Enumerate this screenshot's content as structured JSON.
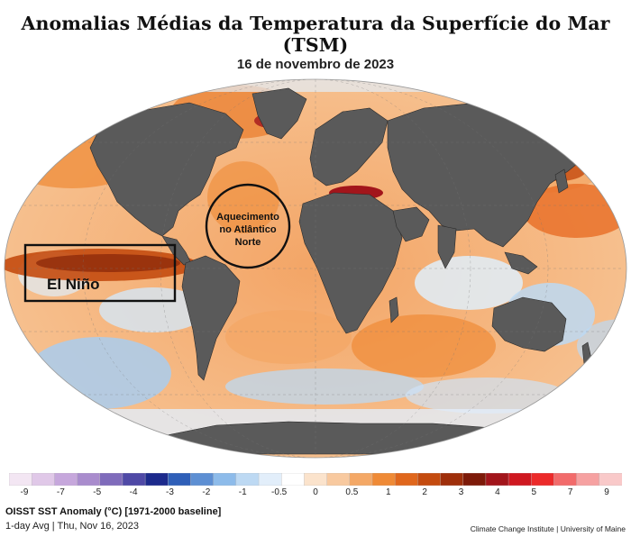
{
  "title": "Anomalias Médias da Temperatura da Superfície do Mar (TSM)",
  "date": "16 de novembro de 2023",
  "annotations": {
    "el_nino": "El Niño",
    "atlantic_line1": "Aquecimento",
    "atlantic_line2": "no Atlântico",
    "atlantic_line3": "Norte"
  },
  "legend": {
    "ticks": [
      "-9",
      "-7",
      "-5",
      "-4",
      "-3",
      "-2",
      "-1",
      "-0.5",
      "0",
      "0.5",
      "1",
      "2",
      "3",
      "4",
      "5",
      "7",
      "9"
    ],
    "colors": [
      "#f3e6f3",
      "#e0c8e8",
      "#c6a7dc",
      "#a98ccd",
      "#7f6bbb",
      "#4f49a6",
      "#1c2a8c",
      "#2f5fb8",
      "#5d8fd3",
      "#8dbbea",
      "#bdd9f3",
      "#e2eefa",
      "#ffffff",
      "#fbe3cc",
      "#f8c99f",
      "#f4a866",
      "#ef8a36",
      "#e0671c",
      "#c44b0f",
      "#9f2f0b",
      "#7d1a09",
      "#a2151b",
      "#cf1820",
      "#ec2a2a",
      "#f26b6b",
      "#f6a1a1",
      "#f9c9c9"
    ]
  },
  "source_line1": "OISST SST Anomaly (°C) [1971-2000 baseline]",
  "source_line2": "1-day Avg | Thu, Nov 16, 2023",
  "credit": "Climate Change Institute | University of Maine"
}
